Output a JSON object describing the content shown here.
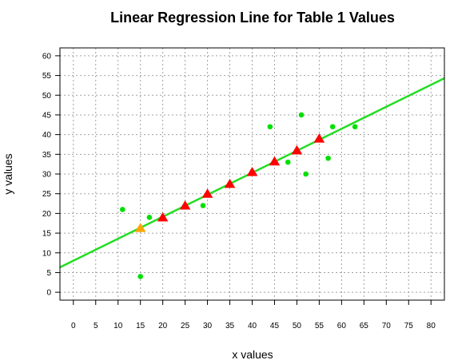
{
  "chart_data": {
    "type": "scatter",
    "title": "Linear Regression Line for Table 1 Values",
    "xlabel": "x values",
    "ylabel": "y values",
    "xlim": [
      -3,
      83
    ],
    "ylim": [
      -2,
      62
    ],
    "xticks": [
      0,
      5,
      10,
      15,
      20,
      25,
      30,
      35,
      40,
      45,
      50,
      55,
      60,
      65,
      70,
      75,
      80
    ],
    "yticks": [
      0,
      5,
      10,
      15,
      20,
      25,
      30,
      35,
      40,
      45,
      50,
      55,
      60
    ],
    "grid": true,
    "grid_style": "dotted",
    "series": [
      {
        "marker": "circle",
        "color": "#00e000",
        "points": [
          {
            "x": 11,
            "y": 21
          },
          {
            "x": 15,
            "y": 4
          },
          {
            "x": 17,
            "y": 19
          },
          {
            "x": 29,
            "y": 22
          },
          {
            "x": 44,
            "y": 42
          },
          {
            "x": 48,
            "y": 33
          },
          {
            "x": 51,
            "y": 45
          },
          {
            "x": 52,
            "y": 30
          },
          {
            "x": 57,
            "y": 34
          },
          {
            "x": 58,
            "y": 42
          },
          {
            "x": 63,
            "y": 42
          }
        ]
      },
      {
        "marker": "triangle",
        "color": "#ff0000",
        "points": [
          {
            "x": 20,
            "y": 19
          },
          {
            "x": 25,
            "y": 22
          },
          {
            "x": 30,
            "y": 25
          },
          {
            "x": 35,
            "y": 27.5
          },
          {
            "x": 40,
            "y": 30.5
          },
          {
            "x": 45,
            "y": 33.2
          },
          {
            "x": 50,
            "y": 36
          },
          {
            "x": 55,
            "y": 39
          }
        ]
      },
      {
        "marker": "triangle",
        "color": "#ffa500",
        "points": [
          {
            "x": 15,
            "y": 16.3
          }
        ]
      }
    ],
    "regression_line": {
      "color": "#22dd22",
      "intercept": 8.0,
      "slope": 0.558
    }
  }
}
